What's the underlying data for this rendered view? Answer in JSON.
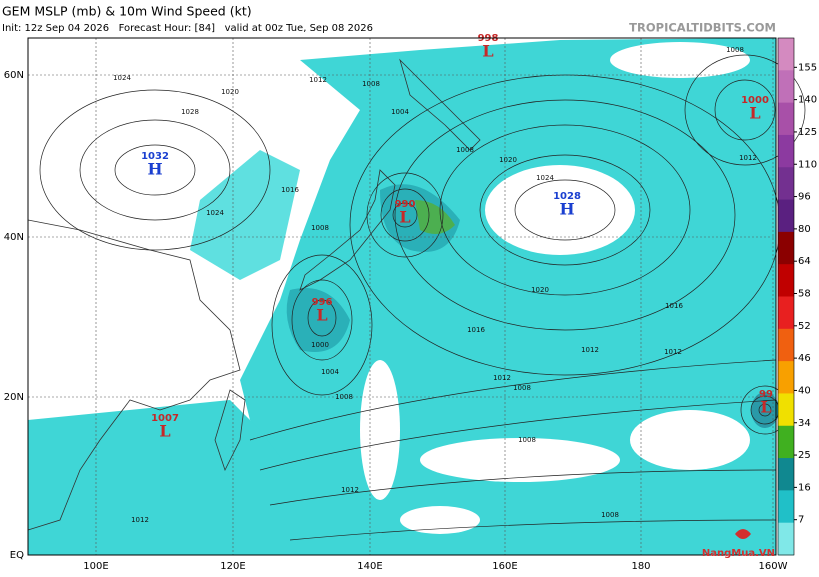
{
  "header": {
    "title": "GEM MSLP (mb) & 10m Wind Speed (kt)",
    "subtitle": "Init: 12z Sep 04 2026   Forecast Hour: [84]   valid at 00z Tue, Sep 08 2026",
    "source": "TROPICALTIDBITS.COM"
  },
  "map": {
    "lat_labels": [
      "60N",
      "40N",
      "20N",
      "EQ"
    ],
    "lon_labels": [
      "100E",
      "120E",
      "140E",
      "160E",
      "180",
      "160W"
    ],
    "centers": [
      {
        "letter": "H",
        "value": "1032"
      },
      {
        "letter": "L",
        "value": "998"
      },
      {
        "letter": "L",
        "value": "1000"
      },
      {
        "letter": "H",
        "value": "1028"
      },
      {
        "letter": "L",
        "value": "990"
      },
      {
        "letter": "L",
        "value": "996"
      },
      {
        "letter": "L",
        "value": "1007"
      },
      {
        "letter": "L",
        "value": "99"
      }
    ],
    "isobar_labels": [
      "1024",
      "1020",
      "1028",
      "1012",
      "1008",
      "1016",
      "1024",
      "1008",
      "1020",
      "1024",
      "1020",
      "1016",
      "1012",
      "1008",
      "1004",
      "1000",
      "1008",
      "1016",
      "1012",
      "1012",
      "1008",
      "1004",
      "1008",
      "1012",
      "1012",
      "1008",
      "1012",
      "1008"
    ]
  },
  "colorbar": {
    "labels": [
      "155",
      "140",
      "125",
      "110",
      "96",
      "80",
      "64",
      "58",
      "52",
      "46",
      "40",
      "34",
      "25",
      "16",
      "7"
    ]
  },
  "logo": "NangMua.VN"
}
